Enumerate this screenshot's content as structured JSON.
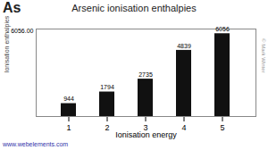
{
  "chart_data": {
    "type": "bar",
    "title": "Arsenic ionisation enthalpies",
    "xlabel": "Ionisation energy",
    "ylabel": "Ionisation enthalpies/kJ mol⁻¹",
    "categories": [
      1,
      2,
      3,
      4,
      5
    ],
    "values": [
      944,
      1794,
      2735,
      4839,
      6056
    ],
    "color": "#111111",
    "ylim": [
      0,
      6400
    ],
    "tick_labels": "x",
    "grid": false,
    "data_labels": true,
    "annotations": [
      "As",
      "6056.00",
      "www.webelements.com",
      "© Mark Winter"
    ]
  }
}
